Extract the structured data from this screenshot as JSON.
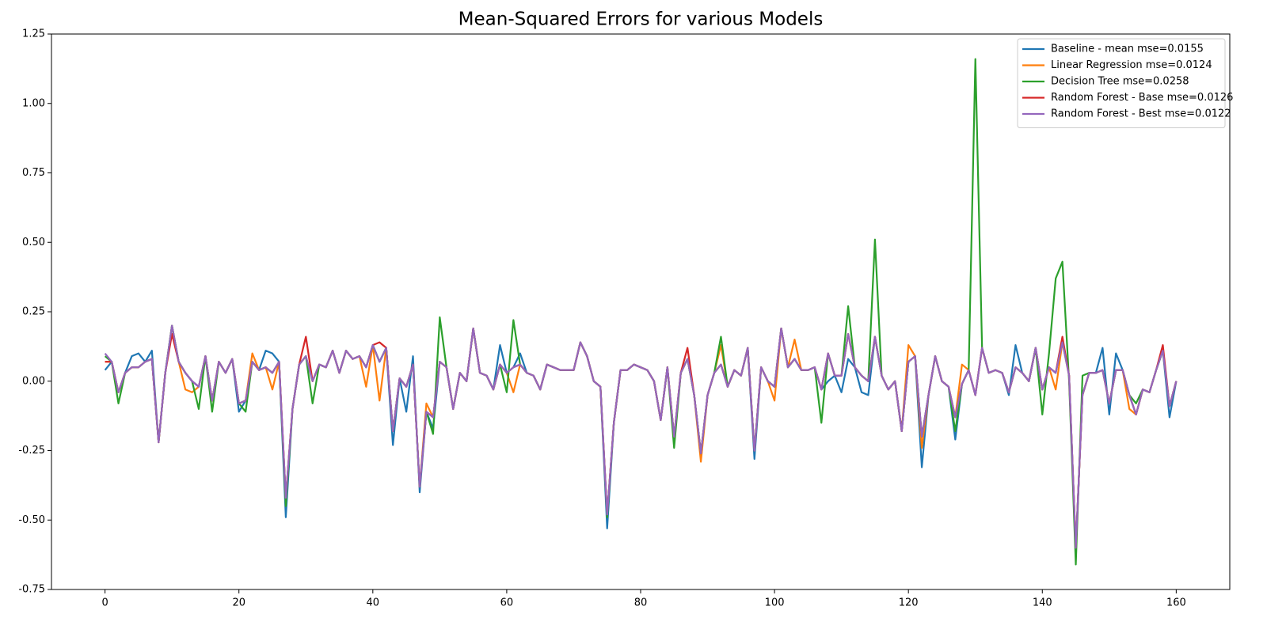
{
  "chart_data": {
    "type": "line",
    "title": "Mean-Squared Errors for various Models",
    "x": [
      0,
      1,
      2,
      3,
      4,
      5,
      6,
      7,
      8,
      9,
      10,
      11,
      12,
      13,
      14,
      15,
      16,
      17,
      18,
      19,
      20,
      21,
      22,
      23,
      24,
      25,
      26,
      27,
      28,
      29,
      30,
      31,
      32,
      33,
      34,
      35,
      36,
      37,
      38,
      39,
      40,
      41,
      42,
      43,
      44,
      45,
      46,
      47,
      48,
      49,
      50,
      51,
      52,
      53,
      54,
      55,
      56,
      57,
      58,
      59,
      60,
      61,
      62,
      63,
      64,
      65,
      66,
      67,
      68,
      69,
      70,
      71,
      72,
      73,
      74,
      75,
      76,
      77,
      78,
      79,
      80,
      81,
      82,
      83,
      84,
      85,
      86,
      87,
      88,
      89,
      90,
      91,
      92,
      93,
      94,
      95,
      96,
      97,
      98,
      99,
      100,
      101,
      102,
      103,
      104,
      105,
      106,
      107,
      108,
      109,
      110,
      111,
      112,
      113,
      114,
      115,
      116,
      117,
      118,
      119,
      120,
      121,
      122,
      123,
      124,
      125,
      126,
      127,
      128,
      129,
      130,
      131,
      132,
      133,
      134,
      135,
      136,
      137,
      138,
      139,
      140,
      141,
      142,
      143,
      144,
      145,
      146,
      147,
      148,
      149,
      150,
      151,
      152,
      153,
      154,
      155,
      156,
      157,
      158,
      159,
      160
    ],
    "xlim": [
      -8,
      168
    ],
    "xticks": [
      0,
      20,
      40,
      60,
      80,
      100,
      120,
      140,
      160
    ],
    "ylim": [
      -0.75,
      1.25
    ],
    "yticks": [
      -0.75,
      {
        "value": -0.5,
        "label": "-0.50"
      },
      -0.25,
      {
        "value": 0,
        "label": "0.00"
      },
      0.25,
      {
        "value": 0.5,
        "label": "0.50"
      },
      0.75,
      {
        "value": 1,
        "label": "1.00"
      },
      1.25
    ],
    "legend": "upper right",
    "grid": false,
    "series": [
      {
        "name": "Baseline - mean mse=0.0155",
        "color": "#1f77b4",
        "values": [
          0.04,
          0.07,
          -0.04,
          0.03,
          0.09,
          0.1,
          0.07,
          0.11,
          -0.22,
          0.03,
          0.2,
          0.07,
          0.03,
          0.0,
          -0.02,
          0.09,
          -0.07,
          0.07,
          0.03,
          0.08,
          -0.11,
          -0.07,
          0.07,
          0.04,
          0.11,
          0.1,
          0.07,
          -0.49,
          -0.1,
          0.06,
          0.09,
          0.0,
          0.06,
          0.05,
          0.11,
          0.03,
          0.11,
          0.08,
          0.09,
          0.05,
          0.13,
          0.07,
          0.12,
          -0.23,
          0.01,
          -0.11,
          0.09,
          -0.4,
          -0.11,
          -0.17,
          0.07,
          0.05,
          -0.1,
          0.03,
          0.0,
          0.19,
          0.03,
          0.02,
          -0.03,
          0.13,
          0.03,
          0.05,
          0.1,
          0.03,
          0.02,
          -0.03,
          0.06,
          0.05,
          0.04,
          0.04,
          0.04,
          0.14,
          0.09,
          0.0,
          -0.02,
          -0.53,
          -0.15,
          0.04,
          0.04,
          0.06,
          0.05,
          0.04,
          0.0,
          -0.14,
          0.05,
          -0.2,
          0.03,
          0.08,
          -0.05,
          -0.26,
          -0.05,
          0.03,
          0.06,
          -0.02,
          0.04,
          0.02,
          0.12,
          -0.28,
          0.05,
          0.0,
          -0.02,
          0.19,
          0.05,
          0.08,
          0.04,
          0.04,
          0.05,
          -0.03,
          0.0,
          0.02,
          -0.04,
          0.08,
          0.05,
          -0.04,
          -0.05,
          0.16,
          0.02,
          -0.03,
          0.0,
          -0.18,
          0.07,
          0.09,
          -0.31,
          -0.05,
          0.09,
          0.0,
          -0.02,
          -0.21,
          -0.01,
          0.04,
          -0.05,
          0.12,
          0.03,
          0.04,
          0.03,
          -0.05,
          0.13,
          0.03,
          0.0,
          0.12,
          -0.03,
          0.05,
          0.03,
          0.14,
          0.02,
          -0.6,
          -0.05,
          0.03,
          0.03,
          0.12,
          -0.12,
          0.1,
          0.04,
          -0.05,
          -0.12,
          -0.03,
          -0.04,
          0.04,
          0.11,
          -0.13,
          0.0
        ]
      },
      {
        "name": "Linear Regression mse=0.0124",
        "color": "#ff7f0e",
        "values": [
          0.07,
          0.07,
          -0.04,
          0.03,
          0.05,
          0.05,
          0.07,
          0.08,
          -0.22,
          0.03,
          0.2,
          0.07,
          -0.03,
          -0.04,
          -0.02,
          0.09,
          -0.07,
          0.07,
          0.03,
          0.08,
          -0.08,
          -0.07,
          0.1,
          0.04,
          0.05,
          -0.03,
          0.07,
          -0.42,
          -0.1,
          0.06,
          0.09,
          0.0,
          0.06,
          0.05,
          0.11,
          0.03,
          0.11,
          0.08,
          0.09,
          -0.02,
          0.13,
          -0.07,
          0.12,
          -0.18,
          0.01,
          -0.02,
          0.06,
          -0.38,
          -0.08,
          -0.13,
          0.07,
          0.05,
          -0.1,
          0.03,
          0.0,
          0.19,
          0.03,
          0.02,
          -0.03,
          0.06,
          0.03,
          -0.04,
          0.06,
          0.03,
          0.02,
          -0.03,
          0.06,
          0.05,
          0.04,
          0.04,
          0.04,
          0.14,
          0.09,
          0.0,
          -0.02,
          -0.48,
          -0.15,
          0.04,
          0.04,
          0.06,
          0.05,
          0.04,
          0.0,
          -0.14,
          0.05,
          -0.2,
          0.03,
          0.08,
          -0.05,
          -0.29,
          -0.05,
          0.03,
          0.13,
          -0.02,
          0.04,
          0.02,
          0.12,
          -0.25,
          0.05,
          0.0,
          -0.07,
          0.19,
          0.05,
          0.15,
          0.04,
          0.04,
          0.05,
          -0.03,
          0.1,
          0.02,
          0.02,
          0.17,
          0.05,
          0.02,
          0.0,
          0.16,
          0.02,
          -0.03,
          0.0,
          -0.18,
          0.13,
          0.09,
          -0.24,
          -0.05,
          0.09,
          0.0,
          -0.02,
          -0.13,
          0.06,
          0.04,
          -0.05,
          0.12,
          0.03,
          0.04,
          0.03,
          -0.04,
          0.05,
          0.03,
          0.0,
          0.12,
          -0.03,
          0.05,
          -0.03,
          0.14,
          0.02,
          -0.6,
          -0.05,
          0.03,
          0.03,
          0.04,
          -0.08,
          0.04,
          0.04,
          -0.1,
          -0.12,
          -0.03,
          -0.04,
          0.04,
          0.11,
          -0.09,
          0.0
        ]
      },
      {
        "name": "Decision Tree mse=0.0258",
        "color": "#2ca02c",
        "values": [
          0.09,
          0.07,
          -0.08,
          0.03,
          0.05,
          0.05,
          0.07,
          0.08,
          -0.22,
          0.03,
          0.2,
          0.07,
          0.03,
          0.0,
          -0.1,
          0.09,
          -0.11,
          0.07,
          0.03,
          0.08,
          -0.08,
          -0.11,
          0.07,
          0.04,
          0.05,
          0.03,
          0.07,
          -0.45,
          -0.1,
          0.06,
          0.09,
          -0.08,
          0.06,
          0.05,
          0.11,
          0.03,
          0.11,
          0.08,
          0.09,
          0.05,
          0.13,
          0.07,
          0.12,
          -0.18,
          0.01,
          -0.02,
          0.06,
          -0.38,
          -0.11,
          -0.19,
          0.23,
          0.05,
          -0.1,
          0.03,
          0.0,
          0.19,
          0.03,
          0.02,
          -0.03,
          0.06,
          -0.04,
          0.22,
          0.06,
          0.03,
          0.02,
          -0.03,
          0.06,
          0.05,
          0.04,
          0.04,
          0.04,
          0.14,
          0.09,
          0.0,
          -0.02,
          -0.49,
          -0.15,
          0.04,
          0.04,
          0.06,
          0.05,
          0.04,
          0.0,
          -0.14,
          0.05,
          -0.24,
          0.03,
          0.08,
          -0.05,
          -0.26,
          -0.05,
          0.03,
          0.16,
          -0.02,
          0.04,
          0.02,
          0.12,
          -0.25,
          0.05,
          0.0,
          -0.02,
          0.19,
          0.05,
          0.08,
          0.04,
          0.04,
          0.05,
          -0.15,
          0.1,
          0.02,
          0.02,
          0.27,
          0.05,
          0.02,
          0.0,
          0.51,
          0.02,
          -0.03,
          0.0,
          -0.18,
          0.07,
          0.09,
          -0.2,
          -0.05,
          0.09,
          0.0,
          -0.02,
          -0.18,
          -0.01,
          0.04,
          1.16,
          0.12,
          0.03,
          0.04,
          0.03,
          -0.04,
          0.05,
          0.03,
          0.0,
          0.12,
          -0.12,
          0.1,
          0.37,
          0.43,
          0.0,
          -0.66,
          0.02,
          0.03,
          0.03,
          0.04,
          -0.08,
          0.04,
          0.04,
          -0.05,
          -0.08,
          -0.03,
          -0.04,
          0.04,
          0.11,
          -0.09,
          0.0
        ]
      },
      {
        "name": "Random Forest - Base mse=0.0126",
        "color": "#d62728",
        "values": [
          0.07,
          0.07,
          -0.04,
          0.03,
          0.05,
          0.05,
          0.07,
          0.08,
          -0.22,
          0.03,
          0.17,
          0.07,
          0.03,
          0.0,
          -0.02,
          0.09,
          -0.07,
          0.07,
          0.03,
          0.08,
          -0.08,
          -0.07,
          0.07,
          0.04,
          0.05,
          0.03,
          0.07,
          -0.42,
          -0.1,
          0.06,
          0.16,
          0.0,
          0.06,
          0.05,
          0.11,
          0.03,
          0.11,
          0.08,
          0.09,
          0.05,
          0.13,
          0.14,
          0.12,
          -0.18,
          0.01,
          -0.02,
          0.06,
          -0.38,
          -0.11,
          -0.13,
          0.07,
          0.05,
          -0.1,
          0.03,
          0.0,
          0.19,
          0.03,
          0.02,
          -0.03,
          0.06,
          0.03,
          0.05,
          0.06,
          0.03,
          0.02,
          -0.03,
          0.06,
          0.05,
          0.04,
          0.04,
          0.04,
          0.14,
          0.09,
          0.0,
          -0.02,
          -0.48,
          -0.15,
          0.04,
          0.04,
          0.06,
          0.05,
          0.04,
          0.0,
          -0.14,
          0.05,
          -0.2,
          0.03,
          0.12,
          -0.05,
          -0.26,
          -0.05,
          0.03,
          0.06,
          -0.02,
          0.04,
          0.02,
          0.12,
          -0.25,
          0.05,
          0.0,
          -0.02,
          0.19,
          0.05,
          0.08,
          0.04,
          0.04,
          0.05,
          -0.03,
          0.1,
          0.02,
          0.02,
          0.17,
          0.05,
          0.02,
          0.0,
          0.16,
          0.02,
          -0.03,
          0.0,
          -0.18,
          0.07,
          0.09,
          -0.2,
          -0.05,
          0.09,
          0.0,
          -0.02,
          -0.13,
          -0.01,
          0.04,
          -0.05,
          0.12,
          0.03,
          0.04,
          0.03,
          -0.04,
          0.05,
          0.03,
          0.0,
          0.12,
          -0.03,
          0.05,
          0.03,
          0.16,
          0.02,
          -0.6,
          -0.05,
          0.03,
          0.03,
          0.04,
          -0.08,
          0.04,
          0.04,
          -0.05,
          -0.12,
          -0.03,
          -0.04,
          0.04,
          0.13,
          -0.09,
          0.0
        ]
      },
      {
        "name": "Random Forest - Best mse=0.0122",
        "color": "#9467bd",
        "values": [
          0.1,
          0.07,
          -0.04,
          0.03,
          0.05,
          0.05,
          0.07,
          0.08,
          -0.22,
          0.03,
          0.2,
          0.07,
          0.03,
          0.0,
          -0.02,
          0.09,
          -0.07,
          0.07,
          0.03,
          0.08,
          -0.08,
          -0.07,
          0.07,
          0.04,
          0.05,
          0.03,
          0.07,
          -0.42,
          -0.1,
          0.06,
          0.09,
          0.0,
          0.06,
          0.05,
          0.11,
          0.03,
          0.11,
          0.08,
          0.09,
          0.05,
          0.13,
          0.07,
          0.12,
          -0.18,
          0.01,
          -0.02,
          0.06,
          -0.38,
          -0.11,
          -0.13,
          0.07,
          0.05,
          -0.1,
          0.03,
          0.0,
          0.19,
          0.03,
          0.02,
          -0.03,
          0.06,
          0.03,
          0.05,
          0.06,
          0.03,
          0.02,
          -0.03,
          0.06,
          0.05,
          0.04,
          0.04,
          0.04,
          0.14,
          0.09,
          0.0,
          -0.02,
          -0.48,
          -0.15,
          0.04,
          0.04,
          0.06,
          0.05,
          0.04,
          0.0,
          -0.14,
          0.05,
          -0.2,
          0.03,
          0.08,
          -0.05,
          -0.26,
          -0.05,
          0.03,
          0.06,
          -0.02,
          0.04,
          0.02,
          0.12,
          -0.25,
          0.05,
          0.0,
          -0.02,
          0.19,
          0.05,
          0.08,
          0.04,
          0.04,
          0.05,
          -0.03,
          0.1,
          0.02,
          0.02,
          0.17,
          0.05,
          0.02,
          0.0,
          0.16,
          0.02,
          -0.03,
          0.0,
          -0.18,
          0.07,
          0.09,
          -0.2,
          -0.05,
          0.09,
          0.0,
          -0.02,
          -0.13,
          -0.01,
          0.04,
          -0.05,
          0.12,
          0.03,
          0.04,
          0.03,
          -0.04,
          0.05,
          0.03,
          0.0,
          0.12,
          -0.03,
          0.05,
          0.03,
          0.14,
          0.02,
          -0.6,
          -0.05,
          0.03,
          0.03,
          0.04,
          -0.08,
          0.04,
          0.04,
          -0.05,
          -0.12,
          -0.03,
          -0.04,
          0.04,
          0.11,
          -0.09,
          0.0
        ]
      }
    ]
  }
}
